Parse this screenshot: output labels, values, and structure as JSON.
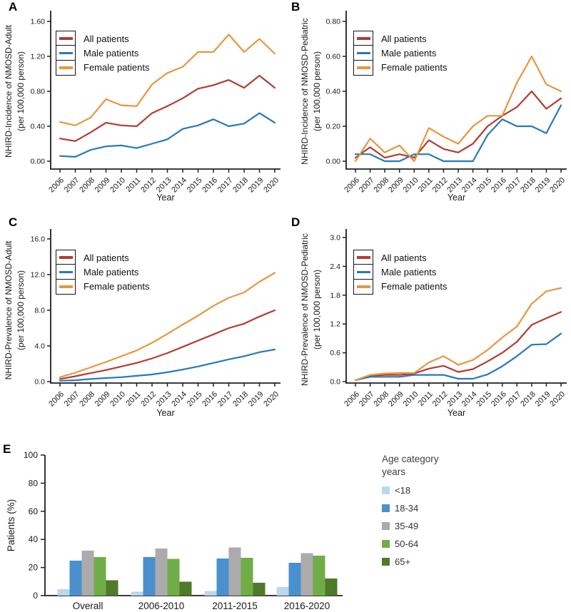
{
  "figure": {
    "background": "#ffffff",
    "description_labels": {
      "xlabel_shared": "Year"
    }
  },
  "chart_data": [
    {
      "panel_label": "A",
      "type": "line",
      "ylabel_line1": "NHIRD-Incidence of NMOSD-Adult",
      "ylabel_line2": "(per 100,000 person)",
      "xlabel": "Year",
      "x": [
        "2006",
        "2007",
        "2008",
        "2009",
        "2010",
        "2011",
        "2012",
        "2013",
        "2014",
        "2015",
        "2016",
        "2017",
        "2018",
        "2019",
        "2020"
      ],
      "ymax": 1.6,
      "yticks": [
        0.0,
        0.4,
        0.8,
        1.2,
        1.6
      ],
      "ytick_labels": [
        "0.00",
        "0.40",
        "0.80",
        "1.20",
        "1.60"
      ],
      "legend_position": "upper-left",
      "series": [
        {
          "name": "All patients",
          "color": "#b23c31",
          "values": [
            0.26,
            0.23,
            0.33,
            0.44,
            0.41,
            0.4,
            0.55,
            0.63,
            0.72,
            0.83,
            0.87,
            0.93,
            0.84,
            0.98,
            0.84
          ]
        },
        {
          "name": "Male patients",
          "color": "#2878b8",
          "values": [
            0.06,
            0.05,
            0.13,
            0.17,
            0.18,
            0.15,
            0.2,
            0.25,
            0.37,
            0.41,
            0.48,
            0.4,
            0.43,
            0.55,
            0.44
          ]
        },
        {
          "name": "Female patients",
          "color": "#e8963f",
          "values": [
            0.45,
            0.41,
            0.5,
            0.71,
            0.64,
            0.63,
            0.88,
            1.01,
            1.08,
            1.25,
            1.25,
            1.45,
            1.25,
            1.4,
            1.23
          ]
        }
      ]
    },
    {
      "panel_label": "B",
      "type": "line",
      "ylabel_line1": "NHIRD-Incidence of NMOSD-Pediatric",
      "ylabel_line2": "(per 100,000 person)",
      "xlabel": "Year",
      "x": [
        "2006",
        "2007",
        "2008",
        "2009",
        "2010",
        "2011",
        "2012",
        "2013",
        "2014",
        "2015",
        "2016",
        "2017",
        "2018",
        "2019",
        "2020"
      ],
      "ymax": 0.8,
      "yticks": [
        0.0,
        0.2,
        0.4,
        0.6,
        0.8
      ],
      "ytick_labels": [
        "0.00",
        "0.20",
        "0.40",
        "0.60",
        "0.80"
      ],
      "legend_position": "upper-left",
      "series": [
        {
          "name": "All patients",
          "color": "#b23c31",
          "values": [
            0.02,
            0.08,
            0.02,
            0.04,
            0.02,
            0.12,
            0.07,
            0.05,
            0.1,
            0.2,
            0.26,
            0.31,
            0.4,
            0.3,
            0.36
          ]
        },
        {
          "name": "Male patients",
          "color": "#2878b8",
          "values": [
            0.04,
            0.04,
            0.0,
            0.0,
            0.04,
            0.04,
            0.0,
            0.0,
            0.0,
            0.15,
            0.24,
            0.2,
            0.2,
            0.16,
            0.32
          ]
        },
        {
          "name": "Female patients",
          "color": "#e8963f",
          "values": [
            0.0,
            0.13,
            0.05,
            0.09,
            0.0,
            0.19,
            0.14,
            0.1,
            0.2,
            0.26,
            0.26,
            0.45,
            0.6,
            0.44,
            0.4
          ]
        }
      ]
    },
    {
      "panel_label": "C",
      "type": "line",
      "ylabel_line1": "NHIRD-Prevalence of NMOSD-Adult",
      "ylabel_line2": "(per 100,000 person)",
      "xlabel": "Year",
      "x": [
        "2006",
        "2007",
        "2008",
        "2009",
        "2010",
        "2011",
        "2012",
        "2013",
        "2014",
        "2015",
        "2016",
        "2017",
        "2018",
        "2019",
        "2020"
      ],
      "ymax": 16.0,
      "yticks": [
        0.0,
        4.0,
        8.0,
        12.0,
        16.0
      ],
      "ytick_labels": [
        "0.0",
        "4.0",
        "8.0",
        "12.0",
        "16.0"
      ],
      "legend_position": "upper-left",
      "series": [
        {
          "name": "All patients",
          "color": "#b23c31",
          "values": [
            0.3,
            0.6,
            0.95,
            1.3,
            1.7,
            2.1,
            2.6,
            3.2,
            3.9,
            4.6,
            5.3,
            6.0,
            6.5,
            7.3,
            8.0
          ]
        },
        {
          "name": "Male patients",
          "color": "#2878b8",
          "values": [
            0.1,
            0.15,
            0.3,
            0.4,
            0.5,
            0.65,
            0.8,
            1.05,
            1.35,
            1.7,
            2.1,
            2.5,
            2.85,
            3.3,
            3.6
          ]
        },
        {
          "name": "Female patients",
          "color": "#e8963f",
          "values": [
            0.5,
            1.0,
            1.6,
            2.2,
            2.85,
            3.5,
            4.35,
            5.35,
            6.4,
            7.4,
            8.5,
            9.4,
            10.0,
            11.2,
            12.2
          ]
        }
      ]
    },
    {
      "panel_label": "D",
      "type": "line",
      "ylabel_line1": "NHIRD-Prevalence of NMOSD-Pediatric",
      "ylabel_line2": "(per 100,000 person)",
      "xlabel": "Year",
      "x": [
        "2006",
        "2007",
        "2008",
        "2009",
        "2010",
        "2011",
        "2012",
        "2013",
        "2014",
        "2015",
        "2016",
        "2017",
        "2018",
        "2019",
        "2020"
      ],
      "ymax": 3.0,
      "yticks": [
        0.0,
        0.6,
        1.2,
        1.8,
        2.4,
        3.0
      ],
      "ytick_labels": [
        "0.0",
        "0.6",
        "1.2",
        "1.8",
        "2.4",
        "3.0"
      ],
      "legend_position": "upper-left",
      "series": [
        {
          "name": "All patients",
          "color": "#b23c31",
          "values": [
            0.03,
            0.12,
            0.14,
            0.14,
            0.17,
            0.27,
            0.33,
            0.2,
            0.26,
            0.42,
            0.6,
            0.83,
            1.18,
            1.32,
            1.45
          ]
        },
        {
          "name": "Male patients",
          "color": "#2878b8",
          "values": [
            0.03,
            0.1,
            0.1,
            0.1,
            0.14,
            0.14,
            0.14,
            0.06,
            0.06,
            0.15,
            0.32,
            0.53,
            0.77,
            0.78,
            1.0
          ]
        },
        {
          "name": "Female patients",
          "color": "#e8963f",
          "values": [
            0.03,
            0.14,
            0.17,
            0.18,
            0.18,
            0.4,
            0.53,
            0.35,
            0.45,
            0.66,
            0.92,
            1.15,
            1.62,
            1.88,
            1.95
          ]
        }
      ]
    },
    {
      "panel_label": "E",
      "type": "bar",
      "ylabel": "Patients (%)",
      "categories": [
        "Overall",
        "2006-2010",
        "2011-2015",
        "2016-2020"
      ],
      "ymax": 100,
      "yticks": [
        0,
        20,
        40,
        60,
        80,
        100
      ],
      "ytick_labels": [
        "0",
        "20",
        "40",
        "60",
        "80",
        "100"
      ],
      "legend_title_line1": "Age category",
      "legend_title_line2": "years",
      "legend_position": "right",
      "series": [
        {
          "name": "<18",
          "color": "#bdd7ee",
          "values": [
            4.5,
            2.7,
            3.2,
            6.0
          ]
        },
        {
          "name": "18-34",
          "color": "#4b90ce",
          "values": [
            25.0,
            27.3,
            26.4,
            23.4
          ]
        },
        {
          "name": "35-49",
          "color": "#ababab",
          "values": [
            32.0,
            33.4,
            34.2,
            30.3
          ]
        },
        {
          "name": "50-64",
          "color": "#70ad47",
          "values": [
            27.5,
            26.2,
            27.0,
            28.4
          ]
        },
        {
          "name": "65+",
          "color": "#4e7a29",
          "values": [
            11.0,
            10.0,
            9.2,
            12.3
          ]
        }
      ]
    }
  ]
}
